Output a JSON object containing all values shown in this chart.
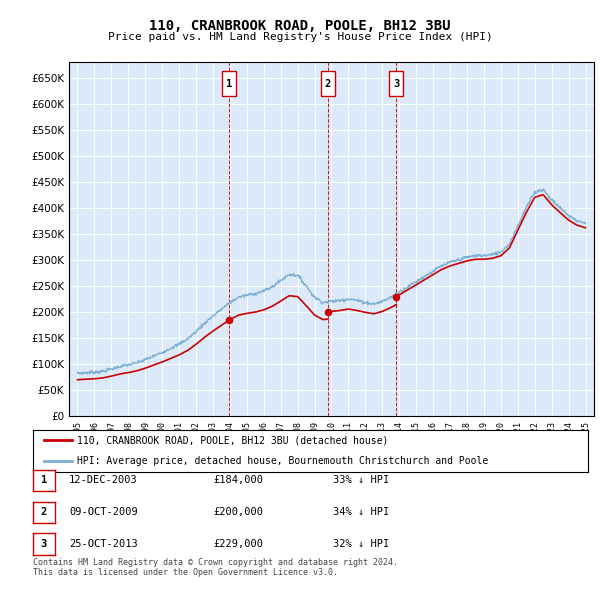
{
  "title": "110, CRANBROOK ROAD, POOLE, BH12 3BU",
  "subtitle": "Price paid vs. HM Land Registry's House Price Index (HPI)",
  "background_color": "#dce9f8",
  "plot_bg_color": "#dce9f8",
  "hpi_color": "#7bafd4",
  "price_color": "#cc0000",
  "dashed_line_color": "#cc0000",
  "transactions": [
    {
      "label": "1",
      "date": "12-DEC-2003",
      "price": 184000,
      "pct": "33%",
      "x_year": 2003.95
    },
    {
      "label": "2",
      "date": "09-OCT-2009",
      "price": 200000,
      "pct": "34%",
      "x_year": 2009.78
    },
    {
      "label": "3",
      "date": "25-OCT-2013",
      "price": 229000,
      "pct": "32%",
      "x_year": 2013.82
    }
  ],
  "legend_entries": [
    "110, CRANBROOK ROAD, POOLE, BH12 3BU (detached house)",
    "HPI: Average price, detached house, Bournemouth Christchurch and Poole"
  ],
  "footer": [
    "Contains HM Land Registry data © Crown copyright and database right 2024.",
    "This data is licensed under the Open Government Licence v3.0."
  ],
  "ylim": [
    0,
    680000
  ],
  "yticks": [
    0,
    50000,
    100000,
    150000,
    200000,
    250000,
    300000,
    350000,
    400000,
    450000,
    500000,
    550000,
    600000,
    650000
  ],
  "xlim_start": 1994.5,
  "xlim_end": 2025.5
}
